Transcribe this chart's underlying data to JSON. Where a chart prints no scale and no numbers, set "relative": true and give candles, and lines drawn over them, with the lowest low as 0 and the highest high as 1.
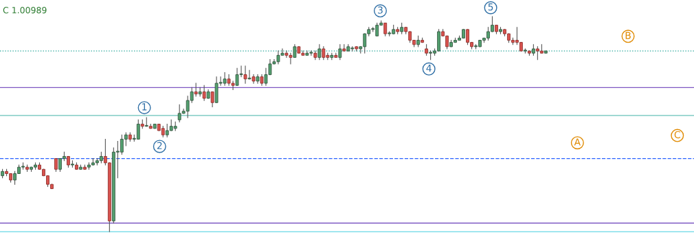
{
  "chart_data": {
    "type": "candlestick",
    "relative": true,
    "categories": [
      null,
      null,
      null,
      null,
      null,
      null,
      null,
      null,
      null,
      null,
      null,
      null,
      null,
      null,
      null,
      null,
      null,
      null,
      null,
      null,
      null,
      null,
      null,
      null,
      null,
      null,
      null,
      null,
      null,
      null,
      null,
      null,
      null,
      null,
      null,
      null,
      null,
      null,
      null,
      null,
      null,
      null,
      null,
      null,
      null,
      null,
      null,
      null,
      null,
      null,
      null,
      null,
      null,
      null,
      null,
      null,
      null,
      null,
      null,
      null,
      null,
      null,
      null,
      null,
      null,
      null,
      null,
      null,
      null,
      null,
      null,
      null,
      null,
      null,
      null,
      null,
      null,
      null,
      null,
      null,
      null,
      null,
      null,
      null,
      null,
      null,
      null,
      null,
      null,
      null,
      null,
      null,
      null,
      null,
      null,
      null,
      null,
      null,
      null,
      null,
      null,
      null,
      null,
      null,
      null,
      null,
      null,
      null,
      null,
      null,
      null,
      null,
      null,
      null,
      null,
      null,
      null,
      null,
      null,
      null,
      null,
      null,
      null,
      null,
      null,
      null,
      null,
      null,
      null,
      null,
      null,
      null,
      null
    ],
    "ohlc": [
      [
        0.26,
        0.29,
        0.25,
        0.28
      ],
      [
        0.28,
        0.29,
        0.26,
        0.27
      ],
      [
        0.27,
        0.27,
        0.23,
        0.24
      ],
      [
        0.24,
        0.28,
        0.22,
        0.27
      ],
      [
        0.27,
        0.31,
        0.27,
        0.3
      ],
      [
        0.3,
        0.32,
        0.29,
        0.3
      ],
      [
        0.3,
        0.31,
        0.28,
        0.29
      ],
      [
        0.29,
        0.3,
        0.28,
        0.3
      ],
      [
        0.3,
        0.32,
        0.29,
        0.31
      ],
      [
        0.31,
        0.32,
        0.29,
        0.29
      ],
      [
        0.29,
        0.29,
        0.26,
        0.26
      ],
      [
        0.26,
        0.26,
        0.21,
        0.22
      ],
      [
        0.22,
        0.22,
        0.2,
        0.2
      ],
      [
        0.34,
        0.34,
        0.28,
        0.29
      ],
      [
        0.29,
        0.34,
        0.28,
        0.34
      ],
      [
        0.34,
        0.37,
        0.33,
        0.35
      ],
      [
        0.35,
        0.35,
        0.3,
        0.31
      ],
      [
        0.31,
        0.33,
        0.3,
        0.31
      ],
      [
        0.31,
        0.32,
        0.29,
        0.29
      ],
      [
        0.29,
        0.31,
        0.29,
        0.3
      ],
      [
        0.3,
        0.31,
        0.29,
        0.29
      ],
      [
        0.3,
        0.32,
        0.29,
        0.31
      ],
      [
        0.31,
        0.34,
        0.31,
        0.32
      ],
      [
        0.32,
        0.34,
        0.31,
        0.33
      ],
      [
        0.33,
        0.37,
        0.32,
        0.35
      ],
      [
        0.35,
        0.43,
        0.31,
        0.32
      ],
      [
        0.32,
        0.32,
        0.0,
        0.05
      ],
      [
        0.05,
        0.39,
        0.04,
        0.37
      ],
      [
        0.37,
        0.42,
        0.25,
        0.37
      ],
      [
        0.37,
        0.45,
        0.36,
        0.43
      ],
      [
        0.43,
        0.46,
        0.4,
        0.45
      ],
      [
        0.45,
        0.46,
        0.42,
        0.43
      ],
      [
        0.43,
        0.45,
        0.42,
        0.43
      ],
      [
        0.43,
        0.52,
        0.43,
        0.5
      ],
      [
        0.5,
        0.52,
        0.48,
        0.49
      ],
      [
        0.49,
        0.53,
        0.49,
        0.49
      ],
      [
        0.49,
        0.5,
        0.48,
        0.48
      ],
      [
        0.48,
        0.5,
        0.48,
        0.5
      ],
      [
        0.5,
        0.5,
        0.47,
        0.47
      ],
      [
        0.48,
        0.49,
        0.44,
        0.45
      ],
      [
        0.45,
        0.5,
        0.44,
        0.47
      ],
      [
        0.47,
        0.52,
        0.47,
        0.49
      ],
      [
        0.48,
        0.51,
        0.47,
        0.49
      ],
      [
        0.52,
        0.59,
        0.51,
        0.55
      ],
      [
        0.55,
        0.57,
        0.55,
        0.56
      ],
      [
        0.56,
        0.63,
        0.53,
        0.61
      ],
      [
        0.61,
        0.67,
        0.6,
        0.65
      ],
      [
        0.65,
        0.69,
        0.63,
        0.64
      ],
      [
        0.64,
        0.67,
        0.63,
        0.65
      ],
      [
        0.65,
        0.68,
        0.61,
        0.62
      ],
      [
        0.62,
        0.66,
        0.62,
        0.65
      ],
      [
        0.65,
        0.65,
        0.58,
        0.6
      ],
      [
        0.6,
        0.72,
        0.6,
        0.69
      ],
      [
        0.69,
        0.72,
        0.68,
        0.69
      ],
      [
        0.69,
        0.74,
        0.68,
        0.71
      ],
      [
        0.71,
        0.73,
        0.68,
        0.69
      ],
      [
        0.69,
        0.7,
        0.66,
        0.68
      ],
      [
        0.68,
        0.76,
        0.68,
        0.73
      ],
      [
        0.73,
        0.77,
        0.72,
        0.73
      ],
      [
        0.73,
        0.77,
        0.69,
        0.71
      ],
      [
        0.71,
        0.75,
        0.71,
        0.71
      ],
      [
        0.72,
        0.73,
        0.69,
        0.7
      ],
      [
        0.7,
        0.73,
        0.69,
        0.72
      ],
      [
        0.72,
        0.73,
        0.68,
        0.69
      ],
      [
        0.69,
        0.76,
        0.68,
        0.73
      ],
      [
        0.73,
        0.8,
        0.73,
        0.78
      ],
      [
        0.78,
        0.8,
        0.78,
        0.79
      ],
      [
        0.79,
        0.84,
        0.78,
        0.82
      ],
      [
        0.82,
        0.85,
        0.82,
        0.83
      ],
      [
        0.83,
        0.84,
        0.81,
        0.82
      ],
      [
        0.82,
        0.83,
        0.78,
        0.81
      ],
      [
        0.81,
        0.87,
        0.81,
        0.86
      ],
      [
        0.86,
        0.86,
        0.83,
        0.83
      ],
      [
        0.83,
        0.84,
        0.82,
        0.82
      ],
      [
        0.82,
        0.84,
        0.82,
        0.83
      ],
      [
        0.83,
        0.84,
        0.82,
        0.83
      ],
      [
        0.83,
        0.84,
        0.8,
        0.81
      ],
      [
        0.81,
        0.87,
        0.8,
        0.85
      ],
      [
        0.85,
        0.86,
        0.8,
        0.81
      ],
      [
        0.82,
        0.83,
        0.8,
        0.81
      ],
      [
        0.81,
        0.83,
        0.8,
        0.82
      ],
      [
        0.82,
        0.83,
        0.81,
        0.81
      ],
      [
        0.81,
        0.87,
        0.8,
        0.85
      ],
      [
        0.85,
        0.87,
        0.84,
        0.84
      ],
      [
        0.84,
        0.87,
        0.84,
        0.86
      ],
      [
        0.85,
        0.86,
        0.84,
        0.85
      ],
      [
        0.86,
        0.86,
        0.84,
        0.85
      ],
      [
        0.85,
        0.86,
        0.83,
        0.86
      ],
      [
        0.86,
        0.92,
        0.83,
        0.92
      ],
      [
        0.92,
        0.95,
        0.91,
        0.94
      ],
      [
        0.94,
        0.95,
        0.93,
        0.94
      ],
      [
        0.91,
        0.97,
        0.91,
        0.96
      ],
      [
        0.96,
        0.98,
        0.96,
        0.97
      ],
      [
        0.97,
        0.97,
        0.91,
        0.92
      ],
      [
        0.92,
        0.93,
        0.91,
        0.92
      ],
      [
        0.92,
        0.96,
        0.92,
        0.94
      ],
      [
        0.94,
        0.95,
        0.92,
        0.93
      ],
      [
        0.93,
        0.97,
        0.92,
        0.95
      ],
      [
        0.95,
        0.95,
        0.92,
        0.93
      ],
      [
        0.93,
        0.93,
        0.88,
        0.89
      ],
      [
        0.89,
        0.89,
        0.86,
        0.87
      ],
      [
        0.87,
        0.91,
        0.86,
        0.89
      ],
      [
        0.89,
        0.9,
        0.88,
        0.88
      ],
      [
        0.85,
        0.87,
        0.82,
        0.83
      ],
      [
        0.83,
        0.84,
        0.8,
        0.83
      ],
      [
        0.83,
        0.85,
        0.82,
        0.84
      ],
      [
        0.84,
        0.94,
        0.84,
        0.93
      ],
      [
        0.93,
        0.94,
        0.91,
        0.91
      ],
      [
        0.91,
        0.91,
        0.85,
        0.86
      ],
      [
        0.86,
        0.89,
        0.86,
        0.88
      ],
      [
        0.88,
        0.9,
        0.88,
        0.89
      ],
      [
        0.89,
        0.91,
        0.89,
        0.9
      ],
      [
        0.9,
        0.94,
        0.9,
        0.94
      ],
      [
        0.94,
        0.94,
        0.87,
        0.88
      ],
      [
        0.88,
        0.88,
        0.85,
        0.86
      ],
      [
        0.86,
        0.87,
        0.85,
        0.86
      ],
      [
        0.86,
        0.89,
        0.86,
        0.89
      ],
      [
        0.89,
        0.9,
        0.88,
        0.9
      ],
      [
        0.9,
        0.95,
        0.89,
        0.93
      ],
      [
        0.93,
        1.0,
        0.93,
        0.96
      ],
      [
        0.96,
        0.96,
        0.92,
        0.93
      ],
      [
        0.93,
        0.95,
        0.92,
        0.94
      ],
      [
        0.94,
        0.94,
        0.91,
        0.92
      ],
      [
        0.92,
        0.92,
        0.88,
        0.89
      ],
      [
        0.89,
        0.9,
        0.87,
        0.88
      ],
      [
        0.89,
        0.95,
        0.87,
        0.88
      ],
      [
        0.88,
        0.88,
        0.84,
        0.84
      ],
      [
        0.84,
        0.85,
        0.83,
        0.84
      ],
      [
        0.84,
        0.84,
        0.82,
        0.83
      ],
      [
        0.83,
        0.87,
        0.82,
        0.85
      ],
      [
        0.85,
        0.86,
        0.8,
        0.84
      ],
      [
        0.84,
        0.87,
        0.83,
        0.83
      ],
      [
        0.83,
        0.84,
        0.83,
        0.84
      ]
    ],
    "ref_lines": [
      {
        "axis": "y",
        "value": 0.84,
        "color": "#26a69a",
        "line_style": "dotted"
      },
      {
        "axis": "y",
        "value": 0.67,
        "color": "#7e57c2",
        "line_style": "solid"
      },
      {
        "axis": "y",
        "value": 0.54,
        "color": "#80cbc4",
        "line_style": "solid"
      },
      {
        "axis": "y",
        "value": 0.34,
        "color": "#2962ff",
        "line_style": "dashed"
      },
      {
        "axis": "y",
        "value": 0.04,
        "color": "#7e57c2",
        "line_style": "solid"
      },
      {
        "axis": "y",
        "value": 0.0,
        "color": "#80deea",
        "line_style": "solid"
      }
    ],
    "annotations": [
      "C 1.00989",
      "1",
      "2",
      "3",
      "4",
      "5",
      "A",
      "B",
      "C"
    ]
  }
}
